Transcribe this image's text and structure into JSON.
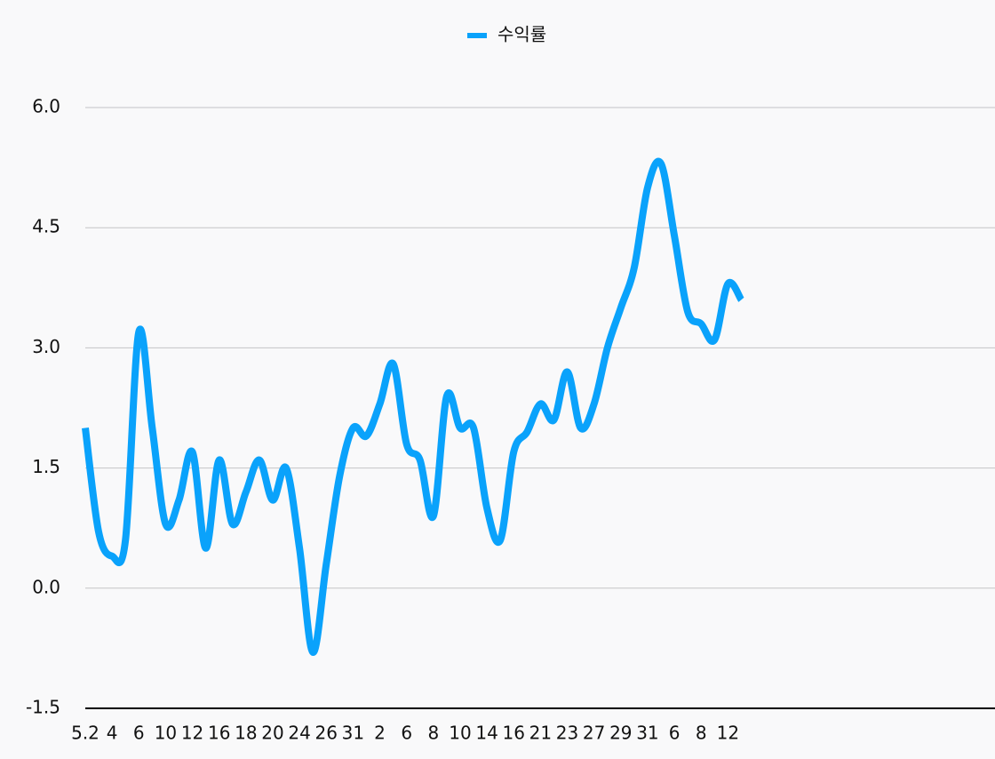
{
  "chart_data": {
    "type": "line",
    "categories": [
      "5.2",
      null,
      "4",
      null,
      "6",
      null,
      "10",
      null,
      "12",
      null,
      "16",
      null,
      "18",
      null,
      "20",
      null,
      "24",
      null,
      "26",
      null,
      "31",
      null,
      "2",
      null,
      "6",
      null,
      "8",
      null,
      "10",
      null,
      "14",
      null,
      "16",
      null,
      "21",
      null,
      "23",
      null,
      "27",
      null,
      "29",
      null,
      "31",
      null,
      "6",
      null,
      "8",
      null,
      "12",
      null
    ],
    "series": [
      {
        "name": "수익률",
        "color": "#0aa2fb",
        "values": [
          2.0,
          0.7,
          0.4,
          0.6,
          3.2,
          2.0,
          0.8,
          1.1,
          1.7,
          0.5,
          1.6,
          0.8,
          1.2,
          1.6,
          1.1,
          1.5,
          0.5,
          -0.8,
          0.3,
          1.4,
          2.0,
          1.9,
          2.3,
          2.8,
          1.8,
          1.6,
          0.9,
          2.4,
          2.0,
          2.0,
          1.0,
          0.6,
          1.7,
          1.95,
          2.3,
          2.1,
          2.7,
          2.0,
          2.3,
          3.0,
          3.5,
          4.0,
          5.0,
          5.3,
          4.4,
          3.45,
          3.3,
          3.1,
          3.8,
          3.6
        ]
      }
    ],
    "ylim": [
      -1.5,
      6.0
    ],
    "yticks": [
      -1.5,
      {
        "value": 0,
        "label": "0.0"
      },
      1.5,
      {
        "value": 3,
        "label": "3.0"
      },
      4.5,
      {
        "value": 6,
        "label": "6.0"
      }
    ],
    "grid": true,
    "legend": "top"
  }
}
